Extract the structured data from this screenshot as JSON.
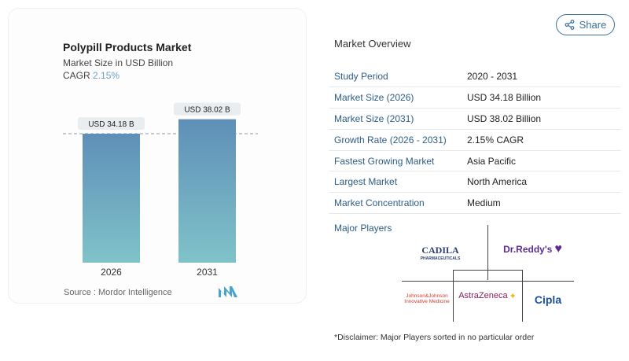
{
  "chart_data": {
    "type": "bar",
    "title": "Polypill Products Market",
    "subtitle": "Market Size in USD Billion",
    "cagr_label": "CAGR",
    "cagr_value": "2.15%",
    "categories": [
      "2026",
      "2031"
    ],
    "values": [
      34.18,
      38.02
    ],
    "data_labels": [
      "USD 34.18 B",
      "USD 38.02 B"
    ],
    "ylim": [
      0,
      40
    ],
    "reference_line": "dashed at 2026 value",
    "colors": {
      "bar_top": "#5f8fb8",
      "bar_bottom": "#7fc3c9",
      "cagr": "#6fa0c8"
    },
    "source": "Source :  Mordor Intelligence"
  },
  "share_label": "Share",
  "overview": {
    "title": "Market Overview",
    "rows": [
      {
        "k": "Study Period",
        "v": "2020 - 2031"
      },
      {
        "k": "Market Size (2026)",
        "v": "USD 34.18 Billion"
      },
      {
        "k": "Market Size (2031)",
        "v": "USD 38.02 Billion"
      },
      {
        "k": "Growth Rate (2026 - 2031)",
        "v": "2.15% CAGR"
      },
      {
        "k": "Fastest Growing Market",
        "v": "Asia Pacific"
      },
      {
        "k": "Largest Market",
        "v": "North America"
      },
      {
        "k": "Market Concentration",
        "v": "Medium"
      }
    ],
    "major_players_label": "Major Players",
    "players": [
      "CADILA",
      "Dr.Reddy's",
      "Johnson&Johnson Innovative Medicine",
      "AstraZeneca",
      "Cipla"
    ],
    "cadila_sub": "PHARMACEUTICALS",
    "jj_line1": "Johnson&Johnson",
    "jj_line2": "Innovative Medicine",
    "disclaimer": "*Disclaimer: Major Players sorted in no particular order"
  }
}
